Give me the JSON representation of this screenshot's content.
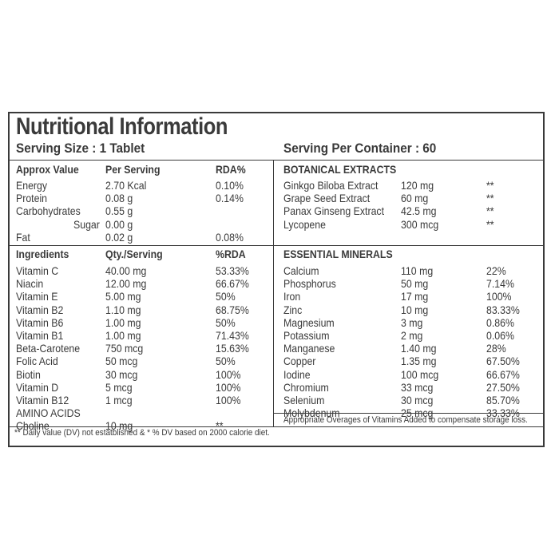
{
  "title": "Nutritional Information",
  "serving_size": "Serving Size : 1 Tablet",
  "serving_per_container": "Serving Per Container : 60",
  "approx": {
    "headers": [
      "Approx Value",
      "Per Serving",
      "RDA%"
    ],
    "rows": [
      {
        "name": "Energy",
        "value": "2.70 Kcal",
        "rda": "0.10%"
      },
      {
        "name": "Protein",
        "value": "0.08 g",
        "rda": "0.14%"
      },
      {
        "name": "Carbohydrates",
        "value": "0.55 g",
        "rda": ""
      },
      {
        "name": "Sugar",
        "value": "0.00 g",
        "rda": ""
      },
      {
        "name": "Fat",
        "value": "0.02 g",
        "rda": "0.08%"
      }
    ]
  },
  "ingredients": {
    "headers": [
      "Ingredients",
      "Qty./Serving",
      "%RDA"
    ],
    "rows": [
      {
        "name": "Vitamin C",
        "value": "40.00 mg",
        "rda": "53.33%"
      },
      {
        "name": "Niacin",
        "value": "12.00 mg",
        "rda": "66.67%"
      },
      {
        "name": "Vitamin E",
        "value": "5.00 mg",
        "rda": "50%"
      },
      {
        "name": "Vitamin B2",
        "value": "1.10 mg",
        "rda": "68.75%"
      },
      {
        "name": "Vitamin B6",
        "value": "1.00 mg",
        "rda": "50%"
      },
      {
        "name": "Vitamin B1",
        "value": "1.00 mg",
        "rda": "71.43%"
      },
      {
        "name": "Beta-Carotene",
        "value": "750 mcg",
        "rda": "15.63%"
      },
      {
        "name": "Folic Acid",
        "value": "50 mcg",
        "rda": "50%"
      },
      {
        "name": "Biotin",
        "value": "30 mcg",
        "rda": "100%"
      },
      {
        "name": "Vitamin D",
        "value": "5 mcg",
        "rda": "100%"
      },
      {
        "name": "Vitamin B12",
        "value": "1 mcg",
        "rda": "100%"
      },
      {
        "name": "AMINO ACIDS",
        "value": "",
        "rda": ""
      },
      {
        "name": "Choline",
        "value": "10 mg",
        "rda": "**"
      }
    ]
  },
  "botanical": {
    "header": "BOTANICAL EXTRACTS",
    "rows": [
      {
        "name": "Ginkgo Biloba Extract",
        "value": "120 mg",
        "rda": "**"
      },
      {
        "name": "Grape Seed Extract",
        "value": "60 mg",
        "rda": "**"
      },
      {
        "name": "Panax Ginseng Extract",
        "value": "42.5 mg",
        "rda": "**"
      },
      {
        "name": "Lycopene",
        "value": "300 mcg",
        "rda": "**"
      }
    ]
  },
  "minerals": {
    "header": "ESSENTIAL MINERALS",
    "rows": [
      {
        "name": "Calcium",
        "value": "110 mg",
        "rda": "22%"
      },
      {
        "name": "Phosphorus",
        "value": "50 mg",
        "rda": "7.14%"
      },
      {
        "name": "Iron",
        "value": "17 mg",
        "rda": "100%"
      },
      {
        "name": "Zinc",
        "value": "10 mg",
        "rda": "83.33%"
      },
      {
        "name": "Magnesium",
        "value": "3 mg",
        "rda": "0.86%"
      },
      {
        "name": "Potassium",
        "value": "2 mg",
        "rda": "0.06%"
      },
      {
        "name": "Manganese",
        "value": "1.40 mg",
        "rda": "28%"
      },
      {
        "name": "Copper",
        "value": "1.35 mg",
        "rda": "67.50%"
      },
      {
        "name": "Iodine",
        "value": "100 mcg",
        "rda": "66.67%"
      },
      {
        "name": "Chromium",
        "value": "33 mcg",
        "rda": "27.50%"
      },
      {
        "name": "Selenium",
        "value": "30 mcg",
        "rda": "85.70%"
      },
      {
        "name": "Molybdenum",
        "value": "25 mcg",
        "rda": "33.33%"
      }
    ]
  },
  "overages_note": "Appropriate Overages of Vitamins Added to compensate storage loss.",
  "footnote": "** Daily value (DV) not estatblished & * % DV based on 2000 calorie diet."
}
